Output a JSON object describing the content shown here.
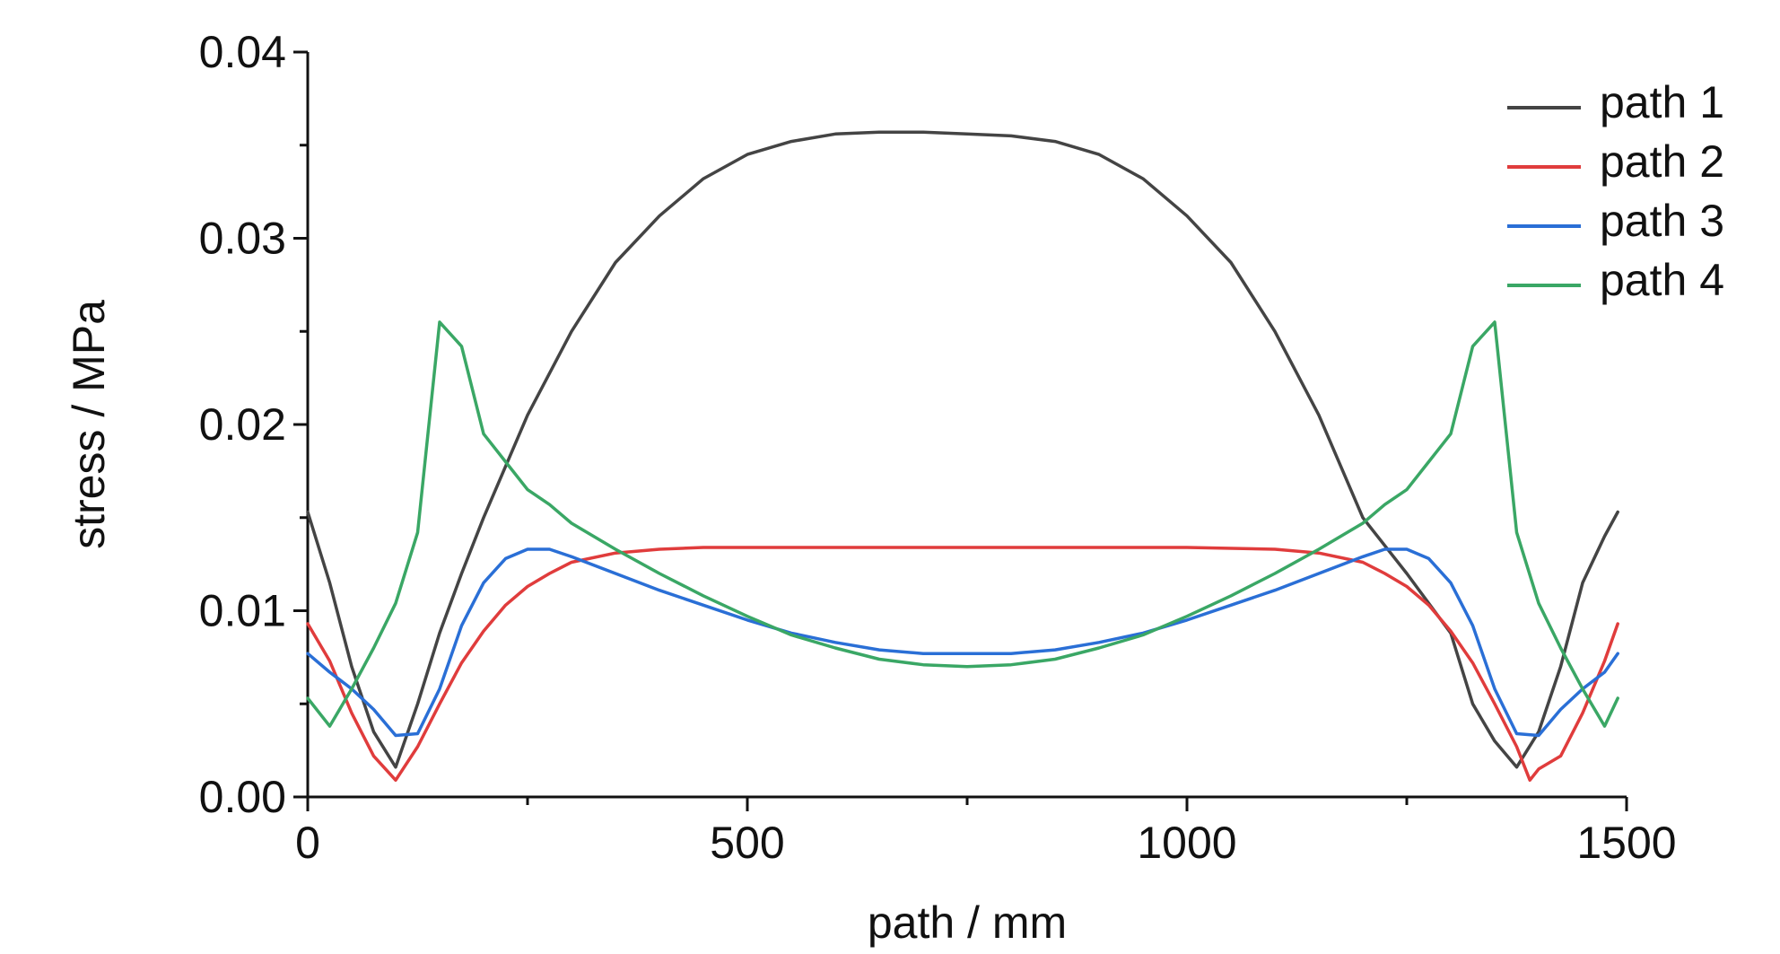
{
  "chart_data": {
    "type": "line",
    "title": "",
    "xlabel": "path / mm",
    "ylabel": "stress / MPa",
    "xlim": [
      0,
      1500
    ],
    "ylim": [
      0,
      0.04
    ],
    "xticks": [
      0,
      500,
      1000,
      1500
    ],
    "xtick_labels": [
      "0",
      "500",
      "1000",
      "1500"
    ],
    "yticks": [
      0,
      0.01,
      0.02,
      0.03,
      0.04
    ],
    "ytick_labels": [
      "0.00",
      "0.01",
      "0.02",
      "0.03",
      "0.04"
    ],
    "grid": false,
    "legend_position": "top-right",
    "series": [
      {
        "name": "path 1",
        "color": "#444444",
        "x": [
          0,
          25,
          50,
          75,
          100,
          125,
          150,
          175,
          200,
          250,
          300,
          350,
          400,
          450,
          500,
          550,
          600,
          650,
          700,
          750,
          800,
          850,
          900,
          950,
          1000,
          1050,
          1100,
          1150,
          1200,
          1250,
          1300,
          1325,
          1350,
          1375,
          1400,
          1425,
          1450,
          1475,
          1490
        ],
        "y": [
          0.0153,
          0.0115,
          0.007,
          0.0035,
          0.0016,
          0.005,
          0.0088,
          0.012,
          0.015,
          0.0205,
          0.025,
          0.0287,
          0.0312,
          0.0332,
          0.0345,
          0.0352,
          0.0356,
          0.0357,
          0.0357,
          0.0356,
          0.0355,
          0.0352,
          0.0345,
          0.0332,
          0.0312,
          0.0287,
          0.025,
          0.0205,
          0.015,
          0.012,
          0.0088,
          0.005,
          0.003,
          0.0016,
          0.0035,
          0.007,
          0.0115,
          0.014,
          0.0153
        ]
      },
      {
        "name": "path 2",
        "color": "#e03c3c",
        "x": [
          0,
          25,
          50,
          75,
          100,
          125,
          150,
          175,
          200,
          225,
          250,
          275,
          300,
          350,
          400,
          450,
          500,
          600,
          700,
          800,
          900,
          1000,
          1100,
          1150,
          1200,
          1225,
          1250,
          1275,
          1300,
          1325,
          1350,
          1375,
          1390,
          1400,
          1425,
          1450,
          1475,
          1490
        ],
        "y": [
          0.0093,
          0.0073,
          0.0045,
          0.0022,
          0.0009,
          0.0027,
          0.005,
          0.0072,
          0.0089,
          0.0103,
          0.0113,
          0.012,
          0.0126,
          0.0131,
          0.0133,
          0.0134,
          0.0134,
          0.0134,
          0.0134,
          0.0134,
          0.0134,
          0.0134,
          0.0133,
          0.0131,
          0.0126,
          0.012,
          0.0113,
          0.0103,
          0.0089,
          0.0072,
          0.005,
          0.0027,
          0.0009,
          0.0015,
          0.0022,
          0.0045,
          0.0073,
          0.0093
        ]
      },
      {
        "name": "path 3",
        "color": "#2a6fd6",
        "x": [
          0,
          25,
          50,
          75,
          100,
          125,
          150,
          175,
          200,
          225,
          250,
          275,
          300,
          350,
          400,
          450,
          500,
          550,
          600,
          650,
          700,
          750,
          800,
          850,
          900,
          950,
          1000,
          1050,
          1100,
          1150,
          1200,
          1225,
          1250,
          1275,
          1300,
          1325,
          1350,
          1375,
          1400,
          1425,
          1450,
          1475,
          1490
        ],
        "y": [
          0.0077,
          0.0067,
          0.0058,
          0.0047,
          0.0033,
          0.0034,
          0.0058,
          0.0092,
          0.0115,
          0.0128,
          0.0133,
          0.0133,
          0.0129,
          0.012,
          0.0111,
          0.0103,
          0.0095,
          0.0088,
          0.0083,
          0.0079,
          0.0077,
          0.0077,
          0.0077,
          0.0079,
          0.0083,
          0.0088,
          0.0095,
          0.0103,
          0.0111,
          0.012,
          0.0129,
          0.0133,
          0.0133,
          0.0128,
          0.0115,
          0.0092,
          0.0058,
          0.0034,
          0.0033,
          0.0047,
          0.0058,
          0.0067,
          0.0077
        ]
      },
      {
        "name": "path 4",
        "color": "#3aa765",
        "x": [
          0,
          25,
          50,
          75,
          100,
          125,
          150,
          175,
          200,
          225,
          250,
          275,
          300,
          350,
          400,
          450,
          500,
          550,
          600,
          650,
          700,
          750,
          800,
          850,
          900,
          950,
          1000,
          1050,
          1100,
          1150,
          1200,
          1225,
          1250,
          1275,
          1300,
          1325,
          1350,
          1375,
          1400,
          1425,
          1450,
          1475,
          1490
        ],
        "y": [
          0.0053,
          0.0038,
          0.0058,
          0.008,
          0.0104,
          0.0142,
          0.0255,
          0.0242,
          0.0195,
          0.018,
          0.0165,
          0.0157,
          0.0147,
          0.0133,
          0.012,
          0.0108,
          0.0097,
          0.0087,
          0.008,
          0.0074,
          0.0071,
          0.007,
          0.0071,
          0.0074,
          0.008,
          0.0087,
          0.0097,
          0.0108,
          0.012,
          0.0133,
          0.0147,
          0.0157,
          0.0165,
          0.018,
          0.0195,
          0.0242,
          0.0255,
          0.0142,
          0.0104,
          0.008,
          0.0058,
          0.0038,
          0.0053
        ]
      }
    ]
  }
}
